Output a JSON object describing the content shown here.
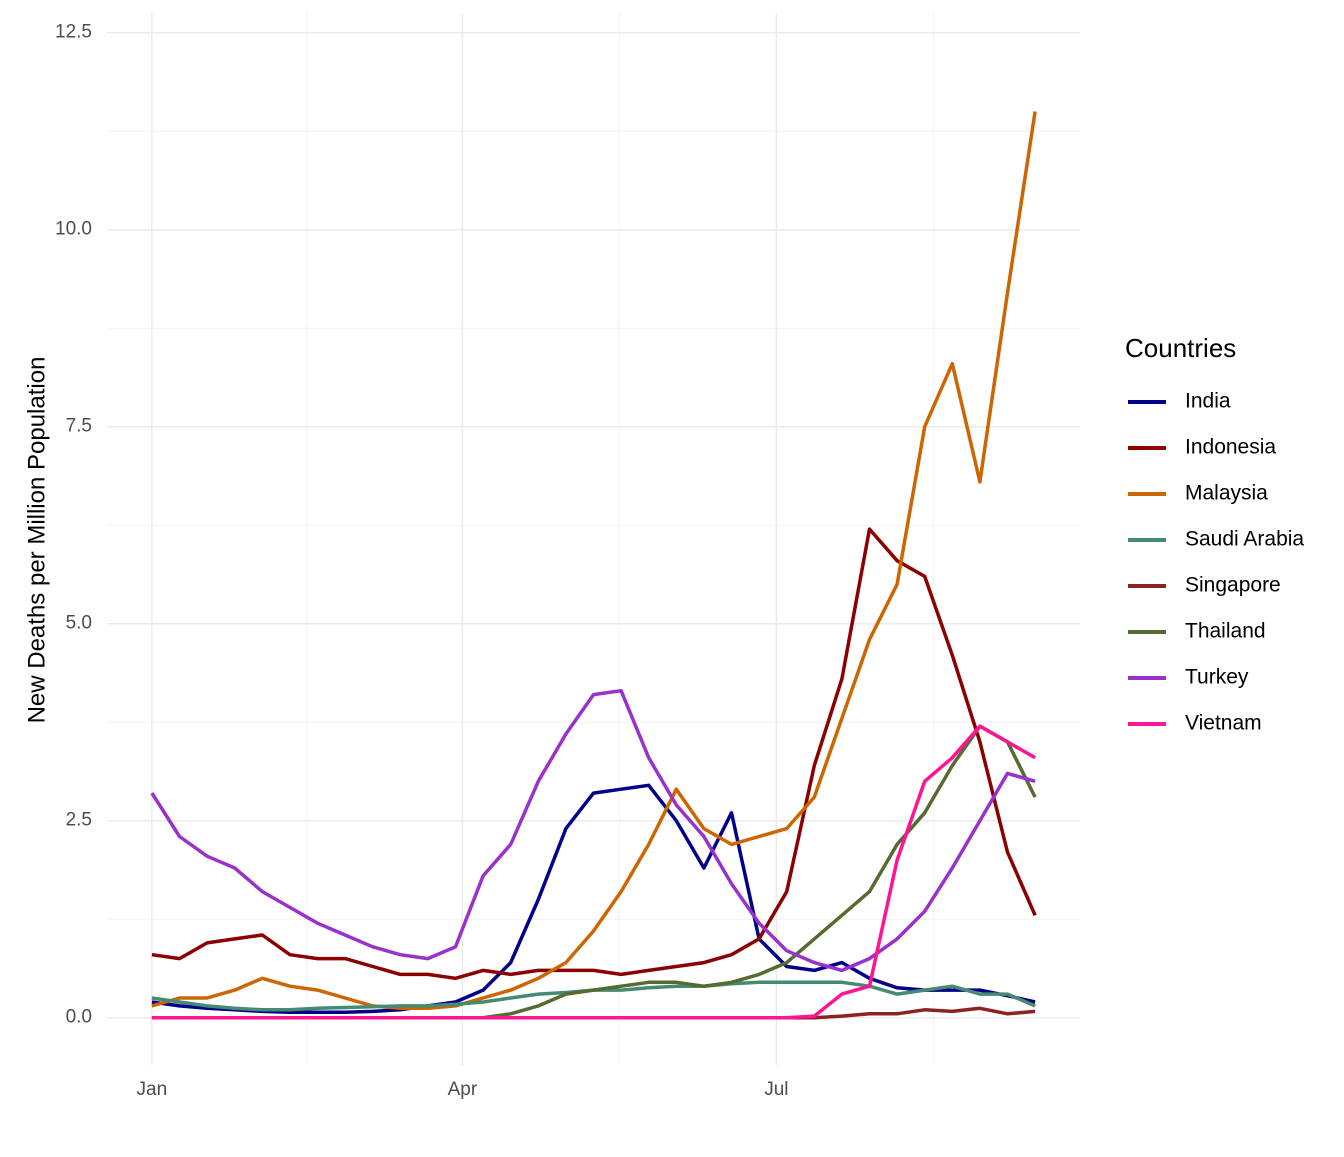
{
  "chart_data": {
    "type": "line",
    "y_label": "New Deaths per Million Population",
    "legend_title": "Countries",
    "legend_position": "right",
    "grid": true,
    "x": [
      0,
      8,
      16,
      24,
      32,
      40,
      48,
      56,
      64,
      72,
      80,
      88,
      96,
      104,
      112,
      120,
      128,
      136,
      144,
      152,
      160,
      168,
      176,
      184,
      192,
      200,
      208,
      216,
      224,
      232,
      240,
      248,
      256
    ],
    "xlim": [
      -13,
      269
    ],
    "xticks": [
      {
        "value": 0,
        "label": "Jan"
      },
      {
        "value": 90,
        "label": "Apr"
      },
      {
        "value": 181,
        "label": "Jul"
      }
    ],
    "ylim": [
      -0.6,
      12.75
    ],
    "yticks": [
      {
        "value": 0,
        "label": "0.0"
      },
      2.5,
      {
        "value": 5,
        "label": "5.0"
      },
      7.5,
      {
        "value": 10,
        "label": "10.0"
      },
      12.5
    ],
    "series": [
      {
        "name": "India",
        "color": "#00008b",
        "values": [
          0.2,
          0.15,
          0.12,
          0.1,
          0.08,
          0.07,
          0.07,
          0.07,
          0.08,
          0.1,
          0.15,
          0.2,
          0.35,
          0.7,
          1.5,
          2.4,
          2.85,
          2.9,
          2.95,
          2.5,
          1.9,
          2.6,
          1.0,
          0.65,
          0.6,
          0.7,
          0.5,
          0.38,
          0.35,
          0.35,
          0.35,
          0.28,
          0.2
        ]
      },
      {
        "name": "Indonesia",
        "color": "#8b0000",
        "values": [
          0.8,
          0.75,
          0.95,
          1.0,
          1.05,
          0.8,
          0.75,
          0.75,
          0.65,
          0.55,
          0.55,
          0.5,
          0.6,
          0.55,
          0.6,
          0.6,
          0.6,
          0.55,
          0.6,
          0.65,
          0.7,
          0.8,
          1.0,
          1.6,
          3.2,
          4.3,
          6.2,
          5.8,
          5.6,
          4.6,
          3.5,
          2.1,
          1.3
        ]
      },
      {
        "name": "Malaysia",
        "color": "#cd6600",
        "values": [
          0.15,
          0.25,
          0.25,
          0.35,
          0.5,
          0.4,
          0.35,
          0.25,
          0.15,
          0.12,
          0.12,
          0.15,
          0.25,
          0.35,
          0.5,
          0.7,
          1.1,
          1.6,
          2.2,
          2.9,
          2.4,
          2.2,
          2.3,
          2.4,
          2.8,
          3.8,
          4.8,
          5.5,
          7.5,
          8.3,
          6.8,
          9.2,
          11.5
        ]
      },
      {
        "name": "Saudi Arabia",
        "color": "#458b74",
        "values": [
          0.25,
          0.2,
          0.15,
          0.12,
          0.1,
          0.1,
          0.12,
          0.13,
          0.14,
          0.15,
          0.15,
          0.17,
          0.2,
          0.25,
          0.3,
          0.32,
          0.35,
          0.35,
          0.38,
          0.4,
          0.4,
          0.43,
          0.45,
          0.45,
          0.45,
          0.45,
          0.4,
          0.3,
          0.35,
          0.4,
          0.3,
          0.3,
          0.15
        ]
      },
      {
        "name": "Singapore",
        "color": "#8b2323",
        "values": [
          0,
          0,
          0,
          0,
          0,
          0,
          0,
          0,
          0,
          0,
          0,
          0,
          0,
          0,
          0,
          0,
          0,
          0,
          0,
          0,
          0,
          0,
          0,
          0,
          0,
          0.02,
          0.05,
          0.05,
          0.1,
          0.08,
          0.12,
          0.05,
          0.08
        ]
      },
      {
        "name": "Thailand",
        "color": "#556b2f",
        "values": [
          0,
          0,
          0,
          0,
          0,
          0,
          0,
          0,
          0,
          0,
          0,
          0,
          0,
          0.05,
          0.15,
          0.3,
          0.35,
          0.4,
          0.45,
          0.45,
          0.4,
          0.45,
          0.55,
          0.7,
          1.0,
          1.3,
          1.6,
          2.2,
          2.6,
          3.2,
          3.7,
          3.5,
          2.8
        ]
      },
      {
        "name": "Turkey",
        "color": "#9932cc",
        "values": [
          2.85,
          2.3,
          2.05,
          1.9,
          1.6,
          1.4,
          1.2,
          1.05,
          0.9,
          0.8,
          0.75,
          0.9,
          1.8,
          2.2,
          3.0,
          3.6,
          4.1,
          4.15,
          3.3,
          2.7,
          2.3,
          1.7,
          1.2,
          0.85,
          0.7,
          0.6,
          0.75,
          1.0,
          1.35,
          1.9,
          2.5,
          3.1,
          3.0
        ]
      },
      {
        "name": "Vietnam",
        "color": "#ff1493",
        "values": [
          0,
          0,
          0,
          0,
          0,
          0,
          0,
          0,
          0,
          0,
          0,
          0,
          0,
          0,
          0,
          0,
          0,
          0,
          0,
          0,
          0,
          0,
          0,
          0,
          0.02,
          0.3,
          0.4,
          2.0,
          3.0,
          3.3,
          3.7,
          3.5,
          3.3
        ]
      }
    ]
  }
}
